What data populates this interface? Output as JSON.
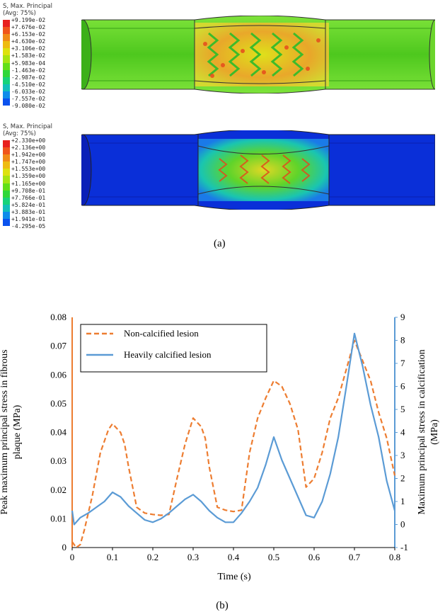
{
  "figure_a": {
    "caption": "(a)",
    "top": {
      "legend_title_1": "S, Max. Principal",
      "legend_title_2": "(Avg: 75%)",
      "values": [
        "+9.199e-02",
        "+7.676e-02",
        "+6.153e-02",
        "+4.630e-02",
        "+3.106e-02",
        "+1.583e-02",
        "+5.983e-04",
        "-1.463e-02",
        "-2.987e-02",
        "-4.510e-02",
        "-6.033e-02",
        "-7.557e-02",
        "-9.080e-02"
      ],
      "colors": [
        "#e8201e",
        "#f0541b",
        "#f08a18",
        "#eebb10",
        "#dde10f",
        "#a6e412",
        "#62df17",
        "#2ed73a",
        "#16d379",
        "#12bfb9",
        "#0f8cea",
        "#0a52ee",
        "#0a1fe4"
      ],
      "vessel_color": "#55cc20"
    },
    "bottom": {
      "legend_title_1": "S, Max. Principal",
      "legend_title_2": "(Avg: 75%)",
      "values": [
        "+2.330e+00",
        "+2.136e+00",
        "+1.942e+00",
        "+1.747e+00",
        "+1.553e+00",
        "+1.359e+00",
        "+1.165e+00",
        "+9.708e-01",
        "+7.766e-01",
        "+5.824e-01",
        "+3.883e-01",
        "+1.941e-01",
        "-4.295e-05"
      ],
      "colors": [
        "#e8201e",
        "#f0541b",
        "#f08a18",
        "#eebb10",
        "#dde10f",
        "#a6e412",
        "#62df17",
        "#2ed73a",
        "#16d379",
        "#12bfb9",
        "#0f8cea",
        "#0a52ee",
        "#0a1fe4"
      ],
      "vessel_color": "#0a3fe0"
    }
  },
  "figure_b": {
    "caption": "(b)",
    "chart_data": {
      "type": "line",
      "xlabel": "Time (s)",
      "ylabel_left_line1": "Peak maximum principal stress in fibrous",
      "ylabel_left_line2": "plaque (MPa)",
      "ylabel_right_line1": "Maximum  principal stress in calcification",
      "ylabel_right_line2": "(MPa)",
      "xlim": [
        0,
        0.8
      ],
      "ylim_left": [
        0,
        0.08
      ],
      "ylim_right": [
        -1,
        9
      ],
      "x_ticks": [
        "0",
        "0.1",
        "0.2",
        "0.3",
        "0.4",
        "0.5",
        "0.6",
        "0.7",
        "0.8"
      ],
      "y_left_ticks": [
        "0",
        "0.01",
        "0.02",
        "0.03",
        "0.04",
        "0.05",
        "0.06",
        "0.07",
        "0.08"
      ],
      "y_right_ticks": [
        "-1",
        "0",
        "1",
        "2",
        "3",
        "4",
        "5",
        "6",
        "7",
        "8",
        "9"
      ],
      "series": [
        {
          "name": "Non-calcified lesion",
          "axis": "left",
          "color": "#ed7d31",
          "dash": true,
          "x": [
            0,
            0.01,
            0.02,
            0.03,
            0.05,
            0.07,
            0.09,
            0.1,
            0.12,
            0.13,
            0.14,
            0.16,
            0.18,
            0.2,
            0.22,
            0.24,
            0.26,
            0.28,
            0.3,
            0.32,
            0.33,
            0.34,
            0.36,
            0.38,
            0.4,
            0.42,
            0.44,
            0.46,
            0.48,
            0.5,
            0.52,
            0.54,
            0.56,
            0.58,
            0.6,
            0.62,
            0.64,
            0.66,
            0.68,
            0.7,
            0.72,
            0.74,
            0.76,
            0.78,
            0.8
          ],
          "y": [
            0.002,
            0.0,
            0.001,
            0.006,
            0.018,
            0.033,
            0.041,
            0.043,
            0.04,
            0.036,
            0.028,
            0.014,
            0.012,
            0.0115,
            0.0112,
            0.0115,
            0.024,
            0.036,
            0.045,
            0.042,
            0.038,
            0.028,
            0.014,
            0.013,
            0.0125,
            0.013,
            0.033,
            0.045,
            0.052,
            0.058,
            0.056,
            0.05,
            0.041,
            0.021,
            0.024,
            0.033,
            0.045,
            0.052,
            0.062,
            0.072,
            0.065,
            0.058,
            0.047,
            0.038,
            0.025
          ]
        },
        {
          "name": "Heavily calcified lesion",
          "axis": "right",
          "color": "#5b9bd5",
          "dash": false,
          "x": [
            0,
            0.005,
            0.01,
            0.02,
            0.04,
            0.06,
            0.08,
            0.1,
            0.12,
            0.14,
            0.16,
            0.18,
            0.2,
            0.22,
            0.24,
            0.26,
            0.28,
            0.3,
            0.32,
            0.34,
            0.36,
            0.38,
            0.4,
            0.42,
            0.44,
            0.46,
            0.48,
            0.5,
            0.52,
            0.54,
            0.56,
            0.58,
            0.6,
            0.62,
            0.64,
            0.66,
            0.68,
            0.7,
            0.72,
            0.74,
            0.76,
            0.78,
            0.8
          ],
          "y": [
            0.6,
            0.0,
            0.1,
            0.3,
            0.5,
            0.75,
            1.0,
            1.4,
            1.2,
            0.8,
            0.5,
            0.2,
            0.1,
            0.25,
            0.5,
            0.8,
            1.1,
            1.3,
            1.0,
            0.6,
            0.3,
            0.1,
            0.1,
            0.5,
            1.0,
            1.6,
            2.6,
            3.8,
            2.8,
            2.0,
            1.2,
            0.4,
            0.3,
            1.0,
            2.2,
            3.8,
            6.0,
            8.3,
            6.9,
            5.2,
            3.8,
            1.9,
            0.6
          ]
        }
      ],
      "legend_position": "top-left"
    }
  }
}
